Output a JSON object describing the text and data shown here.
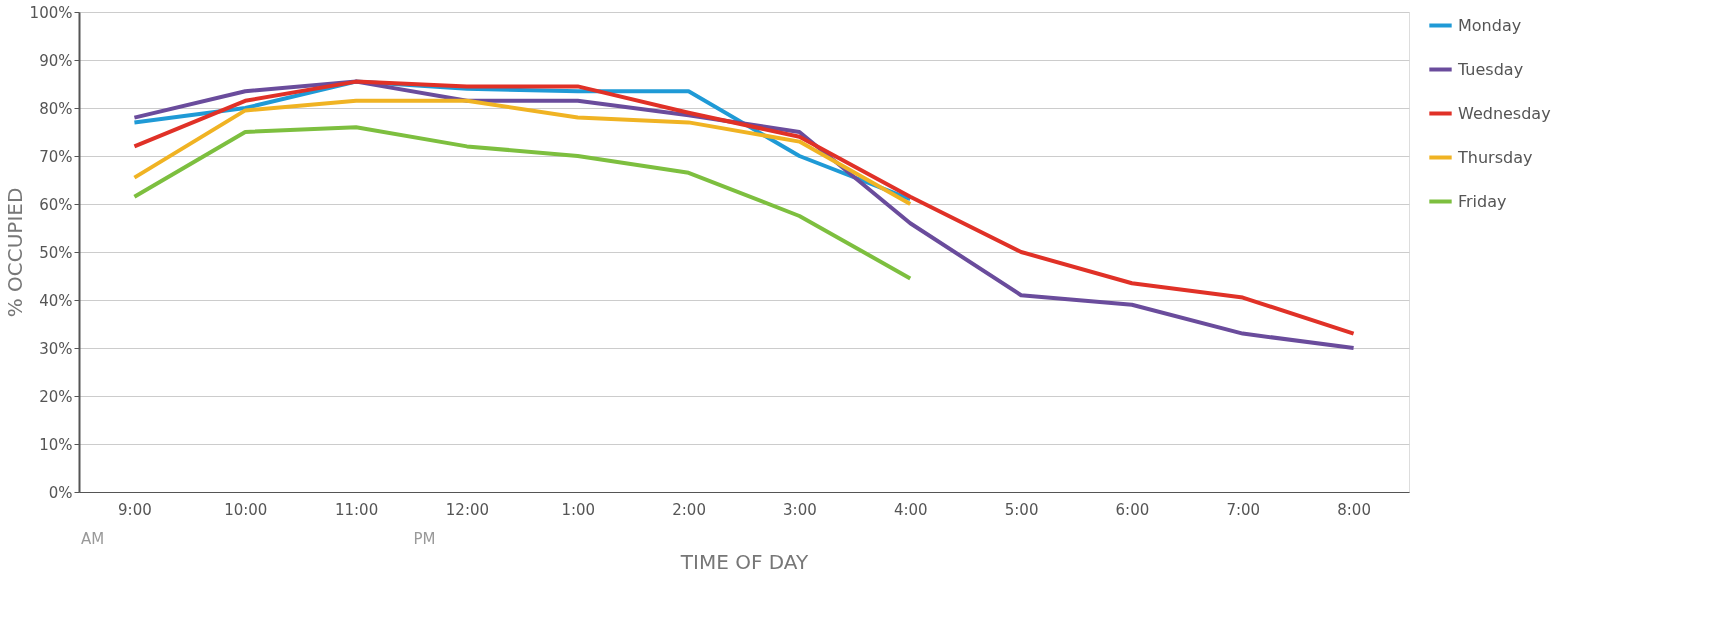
{
  "chart_data": {
    "type": "line",
    "xlabel": "TIME OF DAY",
    "ylabel": "% OCCUPIED",
    "categories": [
      "9:00",
      "10:00",
      "11:00",
      "12:00",
      "1:00",
      "2:00",
      "3:00",
      "4:00",
      "5:00",
      "6:00",
      "7:00",
      "8:00"
    ],
    "series": [
      {
        "name": "Monday",
        "color": "#1f9ad6",
        "values": [
          77,
          80,
          85.5,
          84,
          83.5,
          83.5,
          70,
          61,
          null,
          null,
          null,
          null
        ]
      },
      {
        "name": "Tuesday",
        "color": "#6a4c9c",
        "values": [
          78,
          83.5,
          85.5,
          81.5,
          81.5,
          78.5,
          75,
          56,
          41,
          39,
          33,
          30
        ]
      },
      {
        "name": "Wednesday",
        "color": "#e03127",
        "values": [
          72,
          81.5,
          85.5,
          84.5,
          84.5,
          79,
          74,
          61.5,
          50,
          43.5,
          40.5,
          33
        ]
      },
      {
        "name": "Thursday",
        "color": "#f0b323",
        "values": [
          65.5,
          79.5,
          81.5,
          81.5,
          78,
          77,
          73,
          60,
          null,
          null,
          null,
          null
        ]
      },
      {
        "name": "Friday",
        "color": "#7dbf3f",
        "values": [
          61.5,
          75,
          76,
          72,
          70,
          66.5,
          57.5,
          44.5,
          null,
          null,
          null,
          null
        ]
      }
    ],
    "ylim": [
      0,
      100
    ],
    "yticks": [
      {
        "value": 0,
        "label": "0%"
      },
      {
        "value": 10,
        "label": "10%"
      },
      {
        "value": 20,
        "label": "20%"
      },
      {
        "value": 30,
        "label": "30%"
      },
      {
        "value": 40,
        "label": "40%"
      },
      {
        "value": 50,
        "label": "50%"
      },
      {
        "value": 60,
        "label": "60%"
      },
      {
        "value": 70,
        "label": "70%"
      },
      {
        "value": 80,
        "label": "80%"
      },
      {
        "value": 90,
        "label": "90%"
      },
      {
        "value": 100,
        "label": "100%"
      }
    ],
    "grid": "y",
    "legend": "right",
    "line_style": "solid",
    "marker": "none",
    "annotations": [
      "AM",
      "PM"
    ]
  }
}
